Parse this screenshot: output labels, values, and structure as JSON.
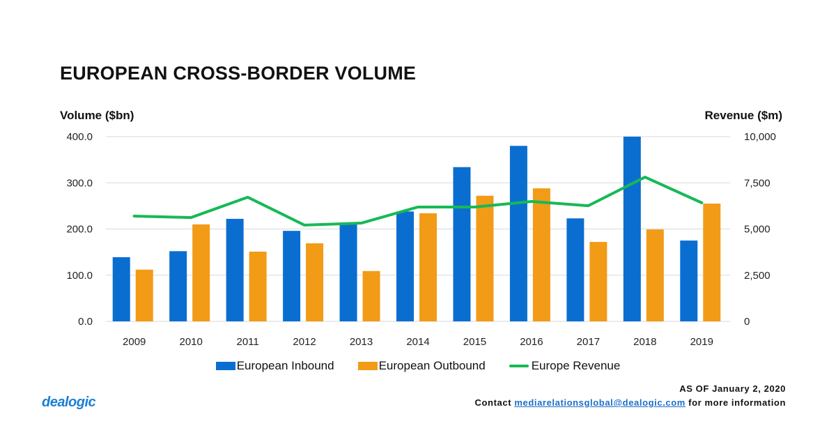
{
  "chart_data": {
    "type": "bar",
    "title": "EUROPEAN CROSS-BORDER VOLUME",
    "ylabel": "Volume ($bn)",
    "y2label": "Revenue ($m)",
    "xlabel": "",
    "categories": [
      "2009",
      "2010",
      "2011",
      "2012",
      "2013",
      "2014",
      "2015",
      "2016",
      "2017",
      "2018",
      "2019"
    ],
    "ylim": [
      0,
      400
    ],
    "y2lim": [
      0,
      10000
    ],
    "yticks": [
      "0.0",
      "100.0",
      "200.0",
      "300.0",
      "400.0"
    ],
    "y2ticks": [
      "0",
      "2,500",
      "5,000",
      "7,500",
      "10,000"
    ],
    "grid": true,
    "legend_position": "bottom",
    "series": [
      {
        "name": "European Inbound",
        "type": "bar",
        "axis": "left",
        "color": "#0a6ed1",
        "values": [
          139,
          152,
          222,
          196,
          211,
          238,
          334,
          380,
          223,
          400,
          175
        ]
      },
      {
        "name": "European Outbound",
        "type": "bar",
        "axis": "left",
        "color": "#f29b17",
        "values": [
          112,
          210,
          151,
          169,
          109,
          234,
          272,
          288,
          172,
          199,
          255
        ]
      },
      {
        "name": "Europe Revenue",
        "type": "line",
        "axis": "right",
        "color": "#16b956",
        "values": [
          5700,
          5620,
          6720,
          5210,
          5320,
          6190,
          6190,
          6490,
          6260,
          7810,
          6420
        ]
      }
    ]
  },
  "footer": {
    "logo": "dealogic",
    "as_of": "AS OF January 2, 2020",
    "contact_prefix": "Contact",
    "contact_email": "mediarelationsglobal@dealogic.com",
    "contact_suffix": "for more information"
  }
}
